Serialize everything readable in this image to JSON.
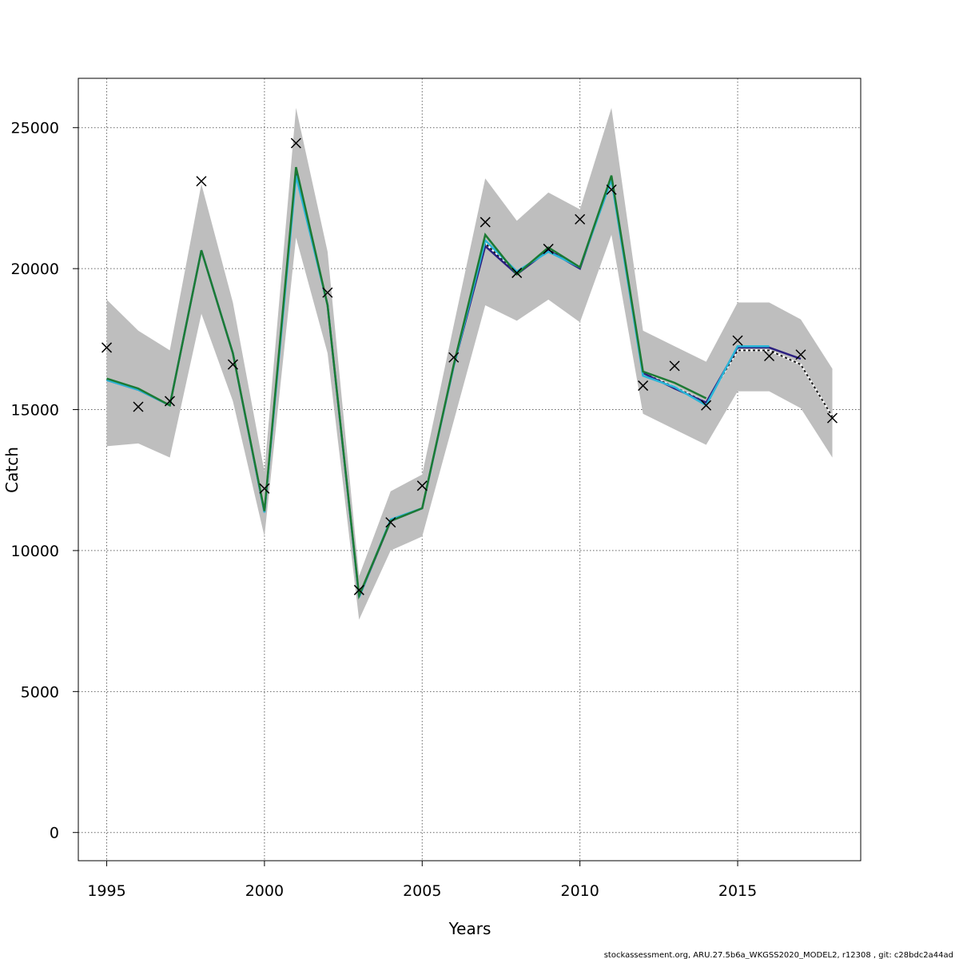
{
  "chart_data": {
    "type": "line",
    "xlabel": "Years",
    "ylabel": "Catch",
    "xlim": [
      1994.1,
      2018.9
    ],
    "ylim": [
      -1000,
      26750
    ],
    "x_ticks": [
      1995,
      2000,
      2005,
      2010,
      2015
    ],
    "y_ticks": [
      0,
      5000,
      10000,
      15000,
      20000,
      25000
    ],
    "grid": true,
    "band": {
      "color": "#bebebe",
      "x": [
        1995,
        1996,
        1997,
        1998,
        1999,
        2000,
        2001,
        2002,
        2003,
        2004,
        2005,
        2006,
        2007,
        2008,
        2009,
        2010,
        2011,
        2012,
        2013,
        2014,
        2015,
        2016,
        2017,
        2018
      ],
      "upper": [
        18900,
        17800,
        17100,
        23000,
        18800,
        12800,
        25700,
        20600,
        9100,
        12100,
        12700,
        18000,
        23200,
        21700,
        22700,
        22100,
        25700,
        17800,
        17250,
        16700,
        18800,
        18800,
        18200,
        16450
      ],
      "lower": [
        13700,
        13800,
        13300,
        18400,
        15300,
        10500,
        21100,
        17000,
        7550,
        10000,
        10500,
        14600,
        18700,
        18150,
        18900,
        18100,
        21200,
        14850,
        14300,
        13750,
        15650,
        15650,
        15050,
        13300
      ]
    },
    "observations": {
      "marker": "x",
      "x": [
        1995,
        1996,
        1997,
        1998,
        1999,
        2000,
        2001,
        2002,
        2003,
        2004,
        2005,
        2006,
        2007,
        2008,
        2009,
        2010,
        2011,
        2012,
        2013,
        2014,
        2015,
        2016,
        2017,
        2018
      ],
      "values": [
        17200,
        15100,
        15300,
        23100,
        16600,
        12200,
        24450,
        19150,
        8600,
        11000,
        12300,
        16850,
        21650,
        19850,
        20700,
        21750,
        22800,
        15850,
        16550,
        15150,
        17450,
        16900,
        16950,
        14700
      ]
    },
    "series": [
      {
        "color": "#1a1a1a",
        "dashed": true,
        "x": [
          1995,
          1996,
          1997,
          1998,
          1999,
          2000,
          2001,
          2002,
          2003,
          2004,
          2005,
          2006,
          2007,
          2008,
          2009,
          2010,
          2011,
          2012,
          2013,
          2014,
          2015,
          2016,
          2017,
          2018
        ],
        "values": [
          16050,
          15700,
          15150,
          20650,
          17000,
          11350,
          23500,
          18700,
          8350,
          11050,
          11500,
          16550,
          20900,
          19800,
          20700,
          20000,
          23250,
          16300,
          15800,
          15250,
          17100,
          17100,
          16600,
          14750
        ]
      },
      {
        "color": "#2b1f80",
        "x": [
          1995,
          1996,
          1997,
          1998,
          1999,
          2000,
          2001,
          2002,
          2003,
          2004,
          2005,
          2006,
          2007,
          2008,
          2009,
          2010,
          2011,
          2012,
          2013,
          2014,
          2015,
          2016,
          2017
        ],
        "values": [
          16050,
          15700,
          15150,
          20650,
          17000,
          11350,
          23500,
          18700,
          8350,
          11050,
          11500,
          16550,
          20800,
          19800,
          20650,
          20000,
          23250,
          16300,
          15750,
          15250,
          17200,
          17200,
          16800
        ]
      },
      {
        "color": "#29b6d8",
        "x": [
          1995,
          1996,
          1997,
          1998,
          1999,
          2000,
          2001,
          2002,
          2003,
          2004,
          2005,
          2006,
          2007,
          2008,
          2009,
          2010,
          2011,
          2012,
          2013,
          2014,
          2015,
          2016
        ],
        "values": [
          16050,
          15700,
          15150,
          20650,
          17000,
          11350,
          23300,
          18700,
          8350,
          11100,
          11500,
          16550,
          21000,
          19900,
          20600,
          20050,
          23150,
          16200,
          15800,
          15150,
          17250,
          17250
        ]
      },
      {
        "color": "#1c7a33",
        "x": [
          1995,
          1996,
          1997,
          1998,
          1999,
          2000,
          2001,
          2002,
          2003,
          2004,
          2005,
          2006,
          2007,
          2008,
          2009,
          2010,
          2011,
          2012,
          2013,
          2014
        ],
        "values": [
          16100,
          15750,
          15150,
          20650,
          17000,
          11400,
          23600,
          18700,
          8400,
          11050,
          11500,
          16600,
          21200,
          19800,
          20750,
          20050,
          23300,
          16350,
          15950,
          15400
        ]
      }
    ]
  },
  "footer": "stockassessment.org, ARU.27.5b6a_WKGSS2020_MODEL2, r12308 , git: c28bdc2a44ad"
}
